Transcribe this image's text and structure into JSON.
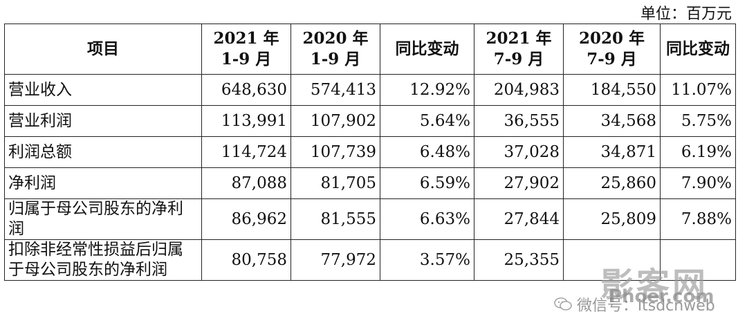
{
  "unit_label": "单位：百万元",
  "headers": [
    {
      "line1": "项目",
      "line2": ""
    },
    {
      "line1": "2021 年",
      "line2": "1-9 月"
    },
    {
      "line1": "2020 年",
      "line2": "1-9 月"
    },
    {
      "line1": "同比变动",
      "line2": ""
    },
    {
      "line1": "2021 年",
      "line2": "7-9 月"
    },
    {
      "line1": "2020 年",
      "line2": "7-9 月"
    },
    {
      "line1": "同比变动",
      "line2": ""
    }
  ],
  "rows": [
    {
      "name": "营业收入",
      "v2021_q13": "648,630",
      "v2020_q13": "574,413",
      "yoy_q13": "12.92%",
      "v2021_q3": "204,983",
      "v2020_q3": "184,550",
      "yoy_q3": "11.07%"
    },
    {
      "name": "营业利润",
      "v2021_q13": "113,991",
      "v2020_q13": "107,902",
      "yoy_q13": "5.64%",
      "v2021_q3": "36,555",
      "v2020_q3": "34,568",
      "yoy_q3": "5.75%"
    },
    {
      "name": "利润总额",
      "v2021_q13": "114,724",
      "v2020_q13": "107,739",
      "yoy_q13": "6.48%",
      "v2021_q3": "37,028",
      "v2020_q3": "34,871",
      "yoy_q3": "6.19%"
    },
    {
      "name": "净利润",
      "v2021_q13": "87,088",
      "v2020_q13": "81,705",
      "yoy_q13": "6.59%",
      "v2021_q3": "27,902",
      "v2020_q3": "25,860",
      "yoy_q3": "7.90%"
    },
    {
      "name": "归属于母公司股东的净利润",
      "v2021_q13": "86,962",
      "v2020_q13": "81,555",
      "yoy_q13": "6.63%",
      "v2021_q3": "27,844",
      "v2020_q3": "25,809",
      "yoy_q3": "7.88%"
    },
    {
      "name": "扣除非经常性损益后归属于母公司股东的净利润",
      "v2021_q13": "80,758",
      "v2020_q13": "77,972",
      "yoy_q13": "3.57%",
      "v2021_q3": "25,355",
      "v2020_q3": "",
      "yoy_q3": ""
    }
  ],
  "watermark": {
    "site": "影客网",
    "domain": "Phoer.com",
    "wechat": "微信号：itsdcnweb"
  }
}
